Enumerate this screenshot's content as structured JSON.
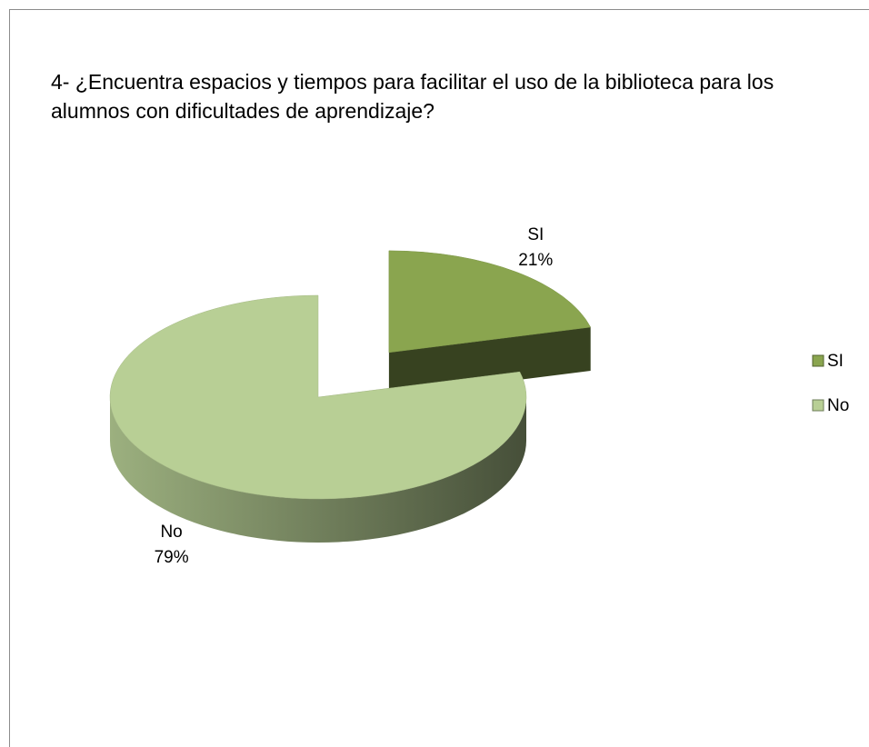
{
  "chart_data": {
    "type": "pie",
    "title": "4- ¿Encuentra espacios y tiempos para facilitar el uso de la biblioteca para los alumnos con dificultades de aprendizaje?",
    "categories": [
      "SI",
      "No"
    ],
    "values": [
      21,
      79
    ],
    "value_labels": [
      "21%",
      "79%"
    ],
    "colors": [
      "#8aa54f",
      "#b8cf95"
    ],
    "exploded": [
      true,
      false
    ],
    "legend": "right"
  }
}
